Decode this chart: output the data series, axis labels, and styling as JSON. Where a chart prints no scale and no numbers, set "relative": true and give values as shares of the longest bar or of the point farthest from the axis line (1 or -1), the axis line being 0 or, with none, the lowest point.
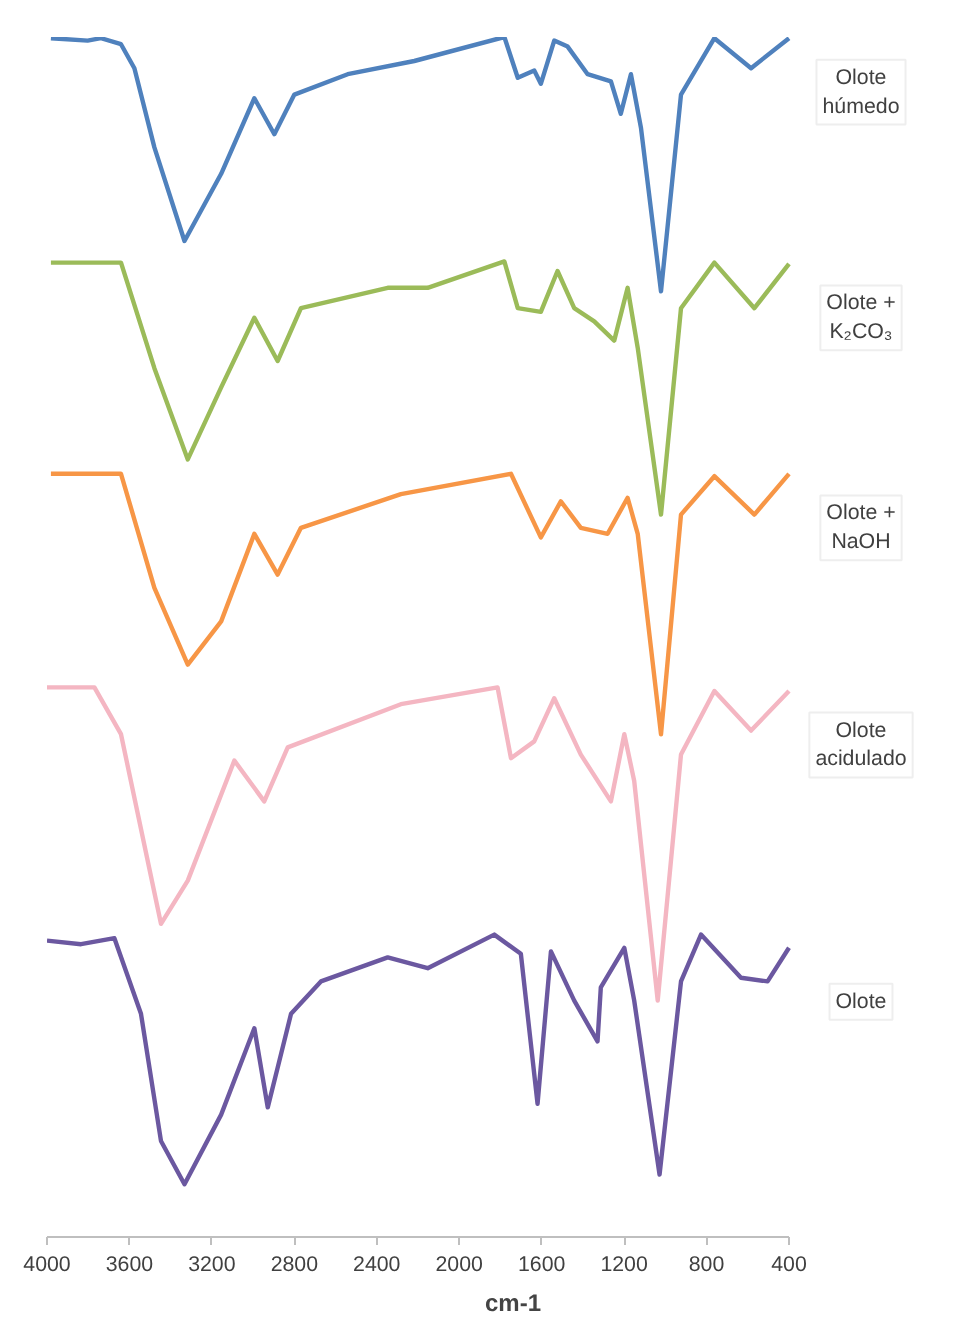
{
  "chart_data": {
    "type": "line",
    "xlabel": "cm-1",
    "relative": true,
    "xlim": [
      4000,
      400
    ],
    "xticks": [
      4000,
      3600,
      3200,
      2800,
      2400,
      2000,
      1600,
      1200,
      800,
      400
    ],
    "grid": false,
    "line_style": "solid",
    "marker": "none",
    "series": [
      {
        "name": "Olote húmedo",
        "color": "#4f81bd",
        "x": [
          3981,
          3803,
          3738,
          3641,
          3576,
          3479,
          3333,
          3155,
          2994,
          2897,
          2800,
          2541,
          2218,
          1781,
          1716,
          1636,
          1604,
          1539,
          1474,
          1377,
          1264,
          1216,
          1167,
          1118,
          1021,
          924,
          762,
          584,
          400
        ],
        "values": [
          0.999,
          0.997,
          0.999,
          0.994,
          0.974,
          0.908,
          0.83,
          0.886,
          0.949,
          0.919,
          0.952,
          0.969,
          0.98,
          1.0,
          0.966,
          0.972,
          0.961,
          0.997,
          0.992,
          0.969,
          0.963,
          0.936,
          0.969,
          0.924,
          0.788,
          0.952,
          0.999,
          0.974,
          0.999
        ]
      },
      {
        "name": "Olote + K₂CO₃",
        "color": "#9bbb59",
        "x": [
          3981,
          3641,
          3479,
          3317,
          3155,
          2994,
          2881,
          2768,
          2347,
          2153,
          1781,
          1716,
          1604,
          1523,
          1442,
          1345,
          1248,
          1183,
          1134,
          1021,
          924,
          762,
          568,
          400
        ],
        "values": [
          0.812,
          0.812,
          0.724,
          0.648,
          0.708,
          0.766,
          0.73,
          0.774,
          0.791,
          0.791,
          0.813,
          0.774,
          0.771,
          0.805,
          0.774,
          0.763,
          0.747,
          0.791,
          0.741,
          0.602,
          0.774,
          0.812,
          0.774,
          0.811
        ]
      },
      {
        "name": "Olote + NaOH",
        "color": "#f79646",
        "x": [
          3981,
          3641,
          3479,
          3317,
          3155,
          2994,
          2881,
          2768,
          2283,
          1749,
          1604,
          1507,
          1410,
          1280,
          1183,
          1134,
          1021,
          924,
          762,
          568,
          400
        ],
        "values": [
          0.636,
          0.636,
          0.541,
          0.477,
          0.513,
          0.586,
          0.552,
          0.591,
          0.619,
          0.636,
          0.583,
          0.613,
          0.591,
          0.586,
          0.616,
          0.586,
          0.419,
          0.602,
          0.634,
          0.602,
          0.636
        ]
      },
      {
        "name": "Olote acidulado",
        "color": "#f4b6c2",
        "x": [
          4000,
          3770,
          3641,
          3447,
          3317,
          3091,
          2946,
          2832,
          2283,
          1814,
          1749,
          1636,
          1539,
          1410,
          1264,
          1199,
          1151,
          1037,
          924,
          762,
          584,
          400
        ],
        "values": [
          0.458,
          0.458,
          0.419,
          0.261,
          0.297,
          0.397,
          0.363,
          0.408,
          0.444,
          0.458,
          0.399,
          0.413,
          0.449,
          0.402,
          0.363,
          0.419,
          0.38,
          0.197,
          0.402,
          0.455,
          0.422,
          0.455
        ]
      },
      {
        "name": "Olote",
        "color": "#6b58a0",
        "x": [
          4000,
          3835,
          3673,
          3544,
          3447,
          3333,
          3155,
          2994,
          2929,
          2881,
          2816,
          2671,
          2347,
          2153,
          1830,
          1701,
          1620,
          1555,
          1442,
          1329,
          1313,
          1199,
          1151,
          1028,
          924,
          827,
          633,
          504,
          400
        ],
        "values": [
          0.247,
          0.244,
          0.249,
          0.186,
          0.08,
          0.044,
          0.102,
          0.174,
          0.108,
          0.141,
          0.186,
          0.213,
          0.233,
          0.224,
          0.252,
          0.236,
          0.111,
          0.238,
          0.197,
          0.163,
          0.208,
          0.241,
          0.197,
          0.052,
          0.213,
          0.252,
          0.216,
          0.213,
          0.241
        ]
      }
    ]
  }
}
